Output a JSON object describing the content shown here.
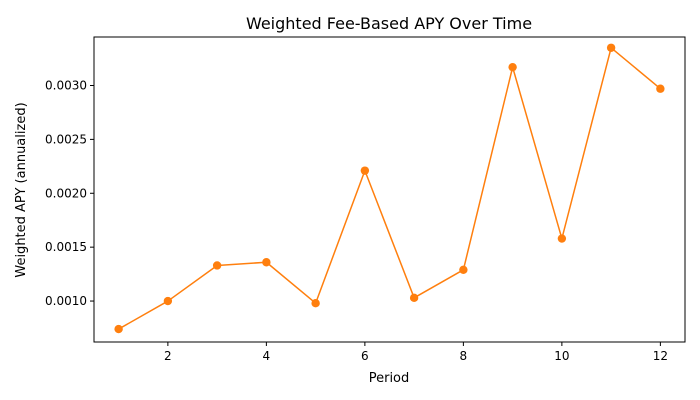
{
  "chart_data": {
    "type": "line",
    "title": "Weighted Fee-Based APY Over Time",
    "xlabel": "Period",
    "ylabel": "Weighted APY (annualized)",
    "xlim": [
      0.5,
      12.5
    ],
    "ylim": [
      0.00062,
      0.00345
    ],
    "x_ticks": [
      2,
      4,
      6,
      8,
      10,
      12
    ],
    "y_ticks": [
      0.001,
      0.0015,
      0.002,
      0.0025,
      0.003
    ],
    "y_tick_labels": [
      "0.0010",
      "0.0015",
      "0.0020",
      "0.0025",
      "0.0030"
    ],
    "grid": false,
    "series": [
      {
        "color": "#ff7f0e",
        "marker": "circle",
        "x": [
          1,
          2,
          3,
          4,
          5,
          6,
          7,
          8,
          9,
          10,
          11,
          12
        ],
        "y": [
          0.00074,
          0.001,
          0.00133,
          0.00136,
          0.00098,
          0.00221,
          0.00103,
          0.00129,
          0.00317,
          0.00158,
          0.00335,
          0.00297
        ]
      }
    ]
  }
}
